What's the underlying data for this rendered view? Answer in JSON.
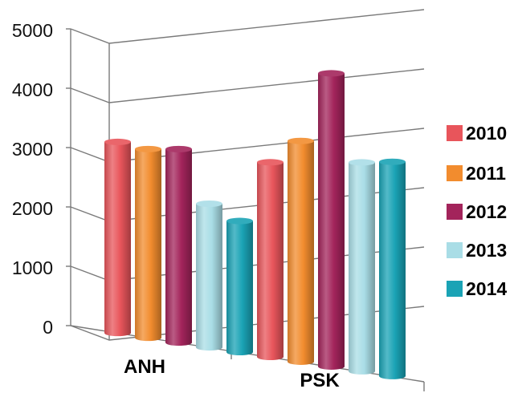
{
  "chart_data": {
    "type": "bar",
    "title": "",
    "xlabel": "",
    "ylabel": "",
    "categories": [
      "ANH",
      "PSK"
    ],
    "series": [
      {
        "name": "2010",
        "values": [
          3220,
          3280
        ],
        "color": "#e8555b"
      },
      {
        "name": "2011",
        "values": [
          3180,
          3720
        ],
        "color": "#f28c2e"
      },
      {
        "name": "2012",
        "values": [
          3260,
          4940
        ],
        "color": "#a3245b"
      },
      {
        "name": "2013",
        "values": [
          2420,
          3520
        ],
        "color": "#a9dde6"
      },
      {
        "name": "2014",
        "values": [
          2210,
          3610
        ],
        "color": "#1aa3b5"
      }
    ],
    "yticks": [
      "0",
      "1000",
      "2000",
      "3000",
      "4000",
      "5000"
    ],
    "ylim": [
      0,
      5000
    ],
    "grid": true,
    "legend": "right"
  }
}
